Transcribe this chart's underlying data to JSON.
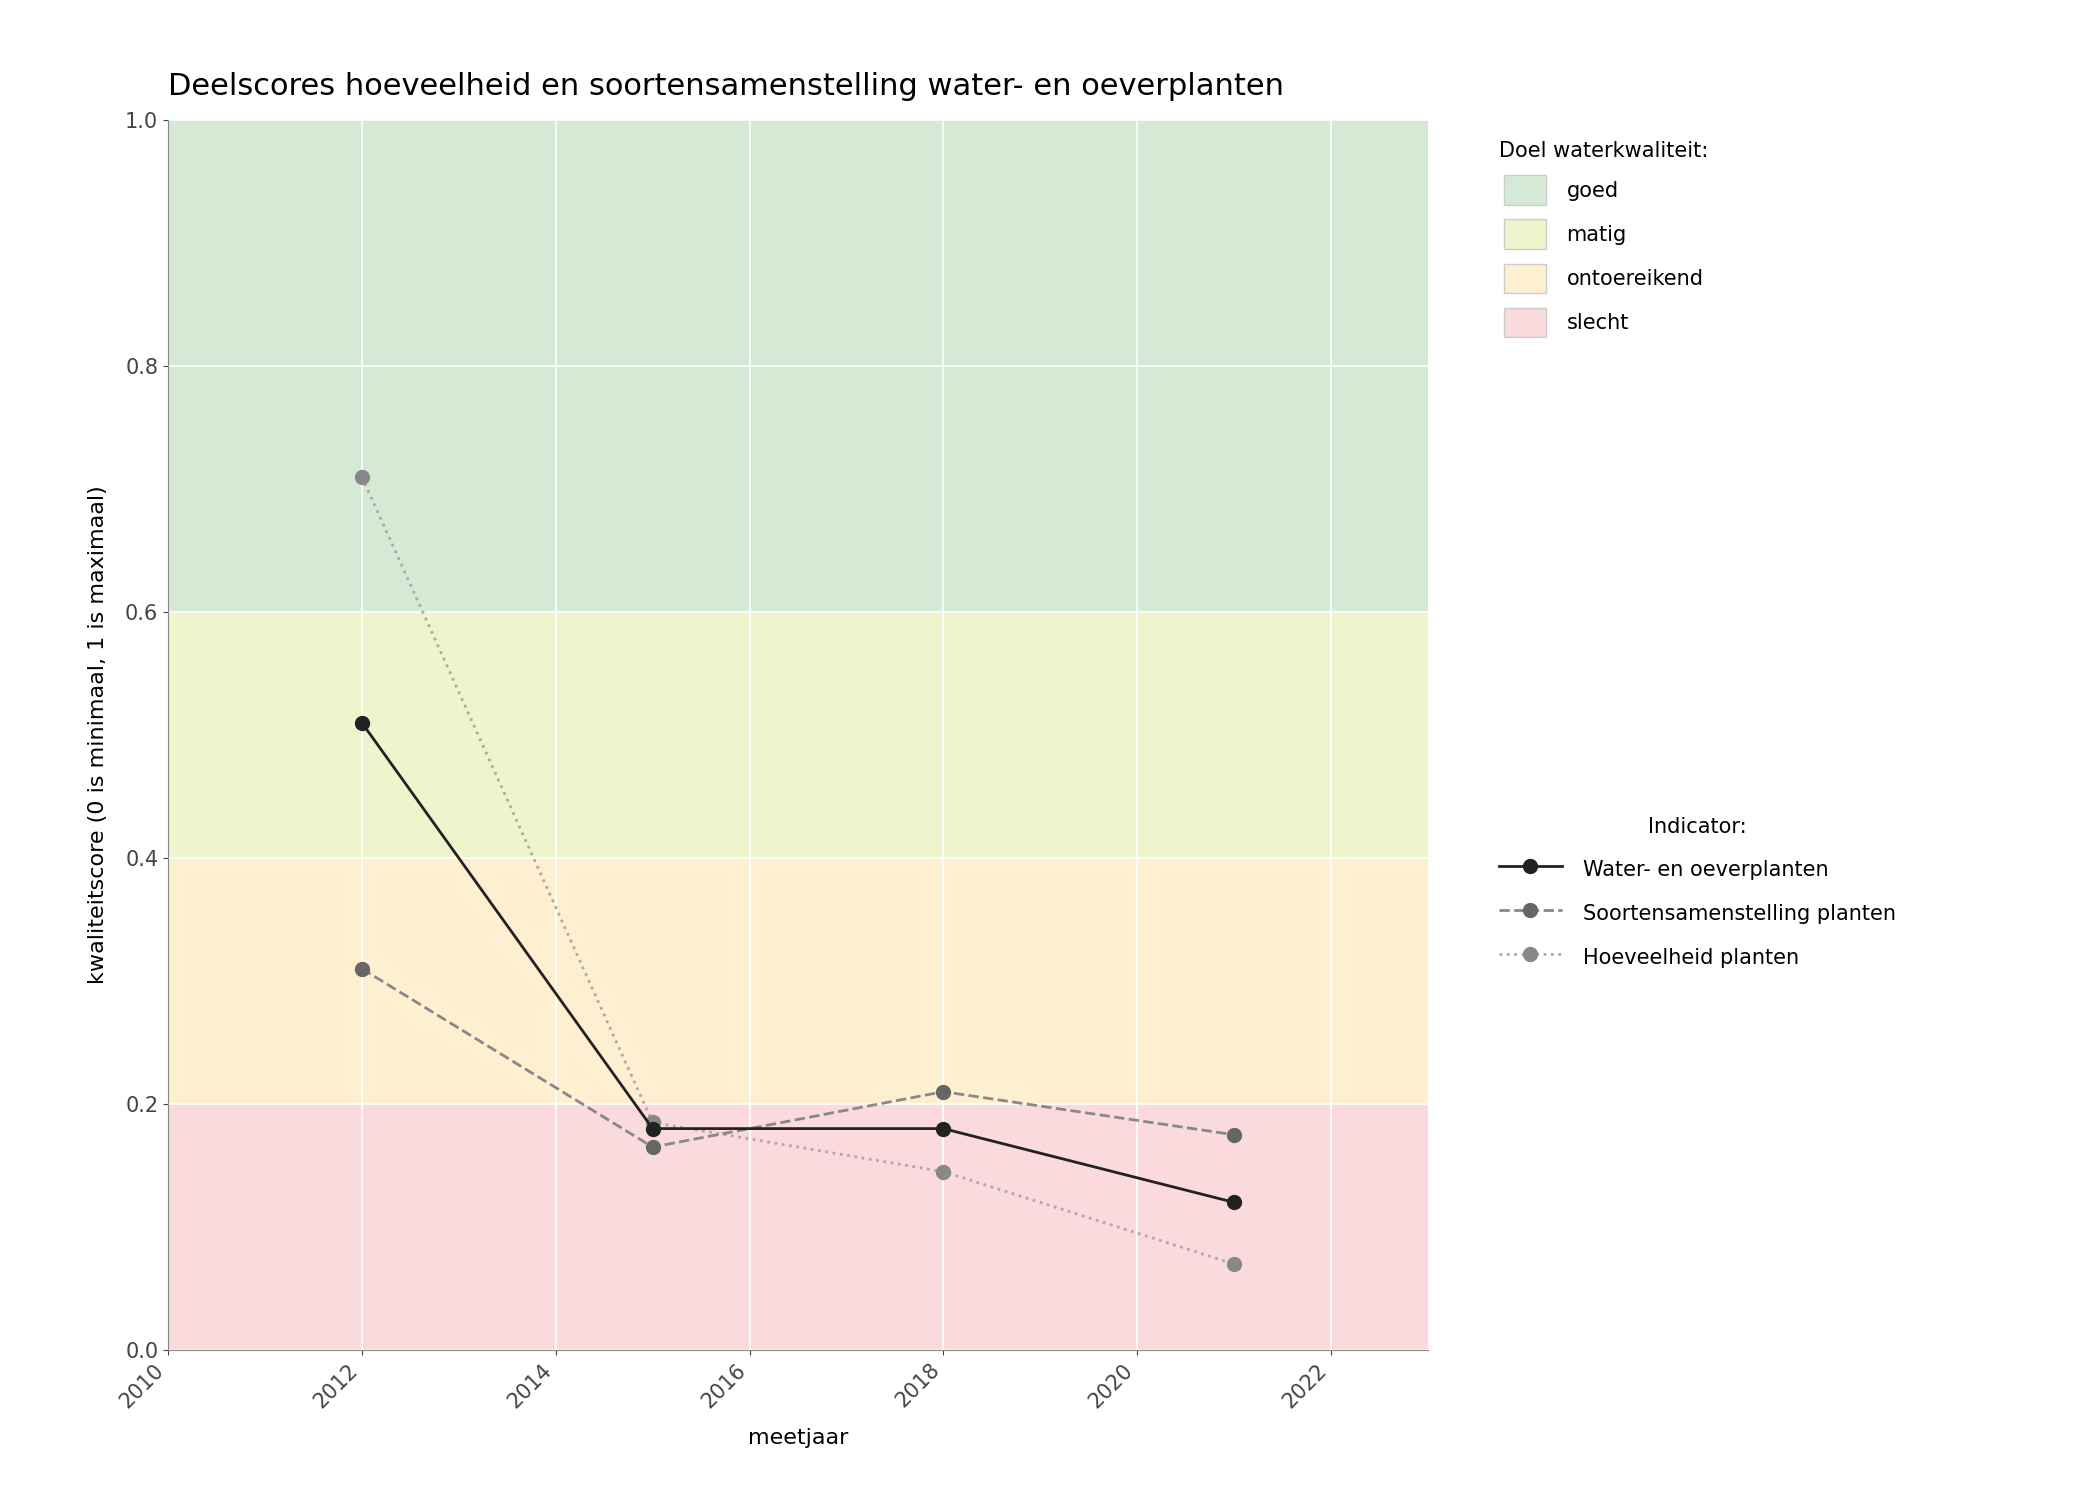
{
  "title": "Deelscores hoeveelheid en soortensamenstelling water- en oeverplanten",
  "xlabel": "meetjaar",
  "ylabel": "kwaliteitscore (0 is minimaal, 1 is maximaal)",
  "xlim": [
    2010,
    2023
  ],
  "ylim": [
    0.0,
    1.0
  ],
  "xticks": [
    2010,
    2012,
    2014,
    2016,
    2018,
    2020,
    2022
  ],
  "yticks": [
    0.0,
    0.2,
    0.4,
    0.6,
    0.8,
    1.0
  ],
  "bg_colors": {
    "goed": {
      "ymin": 0.6,
      "ymax": 1.0,
      "color": "#d5ead5"
    },
    "matig": {
      "ymin": 0.4,
      "ymax": 0.6,
      "color": "#eef5cc"
    },
    "ontoereikend": {
      "ymin": 0.2,
      "ymax": 0.4,
      "color": "#fdefd0"
    },
    "slecht": {
      "ymin": 0.0,
      "ymax": 0.2,
      "color": "#fadadd"
    }
  },
  "line_water_oever": {
    "x": [
      2012,
      2015,
      2018,
      2021
    ],
    "y": [
      0.51,
      0.18,
      0.18,
      0.12
    ],
    "color": "#222222",
    "linestyle": "solid",
    "linewidth": 2.0,
    "marker": "o",
    "markersize": 10,
    "markerfacecolor": "#222222",
    "markeredgecolor": "#222222",
    "zorder": 5,
    "label": "Water- en oeverplanten"
  },
  "line_soorten": {
    "x": [
      2012,
      2015,
      2018,
      2021
    ],
    "y": [
      0.31,
      0.165,
      0.21,
      0.175
    ],
    "color": "#888888",
    "linestyle": "dashed",
    "linewidth": 2.0,
    "marker": "o",
    "markersize": 10,
    "markerfacecolor": "#666666",
    "markeredgecolor": "#666666",
    "zorder": 4,
    "label": "Soortensamenstelling planten"
  },
  "line_hoeveelheid": {
    "x": [
      2012,
      2015,
      2018,
      2021
    ],
    "y": [
      0.71,
      0.185,
      0.145,
      0.07
    ],
    "color": "#aaaaaa",
    "linestyle": "dotted",
    "linewidth": 2.0,
    "marker": "o",
    "markersize": 10,
    "markerfacecolor": "#888888",
    "markeredgecolor": "#888888",
    "zorder": 3,
    "label": "Hoeveelheid planten"
  },
  "legend_quality_title": "Doel waterkwaliteit:",
  "legend_quality_labels": [
    "goed",
    "matig",
    "ontoereikend",
    "slecht"
  ],
  "legend_quality_colors": [
    "#d5ead5",
    "#eef5cc",
    "#fdefd0",
    "#fadadd"
  ],
  "legend_indicator_title": "Indicator:",
  "figsize": [
    21.0,
    15.0
  ],
  "dpi": 100,
  "title_fontsize": 22,
  "axis_label_fontsize": 16,
  "tick_fontsize": 15,
  "legend_fontsize": 15,
  "background_color": "#ffffff"
}
